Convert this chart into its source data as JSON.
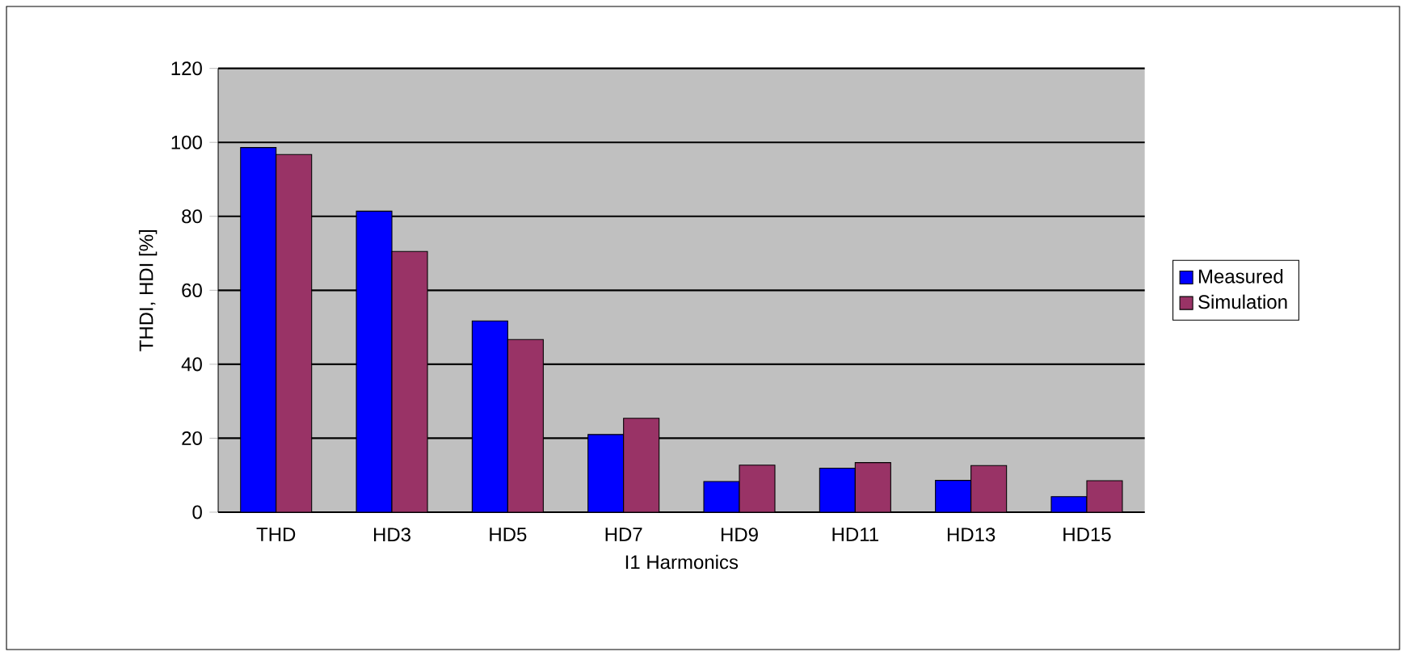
{
  "chart_data": {
    "type": "bar",
    "xlabel": "I1 Harmonics",
    "ylabel": "THDI, HDI [%]",
    "categories": [
      "THD",
      "HD3",
      "HD5",
      "HD7",
      "HD9",
      "HD11",
      "HD13",
      "HD15"
    ],
    "series": [
      {
        "name": "Measured",
        "color": "#0000ff",
        "values": [
          98.6,
          81.4,
          51.7,
          21,
          8.3,
          11.9,
          8.6,
          4.2
        ]
      },
      {
        "name": "Simulation",
        "color": "#993366",
        "values": [
          96.7,
          70.5,
          46.7,
          25.4,
          12.7,
          13.4,
          12.6,
          8.5
        ]
      }
    ],
    "ylim": [
      0,
      120
    ],
    "yticks": [
      0,
      20,
      40,
      60,
      80,
      100,
      120
    ],
    "grid": "y",
    "legend": "right"
  }
}
